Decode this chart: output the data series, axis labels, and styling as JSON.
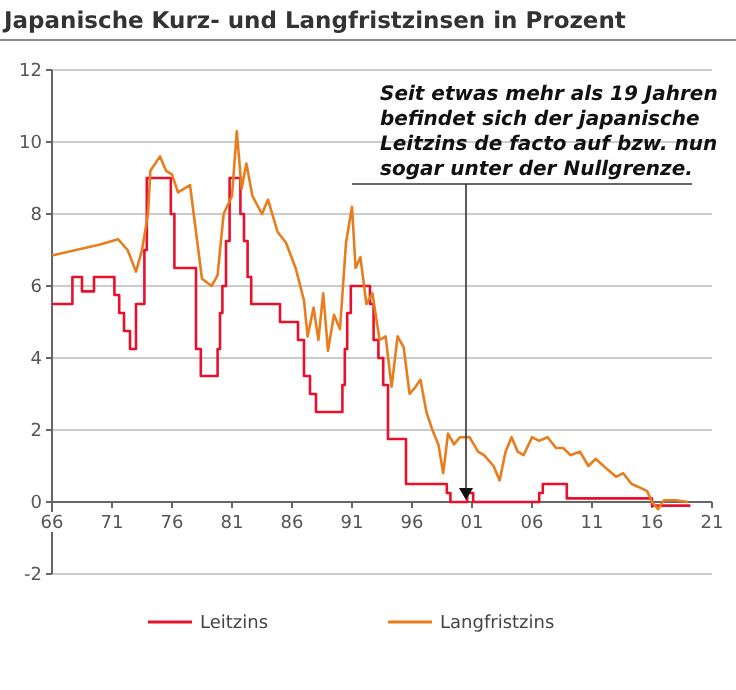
{
  "chart_data": {
    "type": "line",
    "title": "Japanische Kurz- und Langfristzinsen in Prozent",
    "xlim": [
      1966,
      2021
    ],
    "xticks": [
      {
        "value": 1966,
        "label": "66"
      },
      {
        "value": 1971,
        "label": "71"
      },
      {
        "value": 1976,
        "label": "76"
      },
      {
        "value": 1981,
        "label": "81"
      },
      {
        "value": 1986,
        "label": "86"
      },
      {
        "value": 1991,
        "label": "91"
      },
      {
        "value": 1996,
        "label": "96"
      },
      {
        "value": 2001,
        "label": "01"
      },
      {
        "value": 2006,
        "label": "06"
      },
      {
        "value": 2011,
        "label": "11"
      },
      {
        "value": 2016,
        "label": "16"
      },
      {
        "value": 2021,
        "label": "21"
      }
    ],
    "ylim": [
      -2,
      12
    ],
    "yticks": [
      -2,
      0,
      2,
      4,
      6,
      8,
      10,
      12
    ],
    "grid": "y",
    "legend": "bottom",
    "annotations": [
      {
        "text": "Seit etwas mehr als 19 Jahren befindet sich der japanische Leitzins de facto auf bzw. nun sogar unter der Nullgrenze.",
        "x": 2000.5,
        "y": 0
      }
    ],
    "series": [
      {
        "name": "Leitzins",
        "type": "step",
        "color": "#e8112d",
        "x": [
          1966,
          1967.7,
          1968.5,
          1969.5,
          1971.2,
          1971.6,
          1972,
          1972.5,
          1973,
          1973.7,
          1973.9,
          1974.2,
          1975.9,
          1976.2,
          1976.5,
          1978,
          1978.4,
          1979,
          1979.8,
          1980,
          1980.2,
          1980.5,
          1980.8,
          1981.2,
          1981.7,
          1982,
          1982.3,
          1982.6,
          1983,
          1985,
          1986.5,
          1987,
          1987.5,
          1988,
          1990.2,
          1990.4,
          1990.6,
          1990.9,
          1992.5,
          1992.8,
          1993.2,
          1993.6,
          1994,
          1995.5,
          1998.9,
          1999.2,
          2000.6,
          2001.1,
          2006.6,
          2006.9,
          2008.9,
          2016,
          2019.2
        ],
        "values": [
          5.5,
          6.25,
          5.85,
          6.25,
          5.75,
          5.25,
          4.75,
          4.25,
          5.5,
          7,
          9,
          9,
          8,
          6.5,
          6.5,
          4.25,
          3.5,
          3.5,
          4.25,
          5.25,
          6,
          7.25,
          9,
          9,
          8,
          7.25,
          6.25,
          5.5,
          5.5,
          5,
          4.5,
          3.5,
          3,
          2.5,
          3.25,
          4.25,
          5.25,
          6,
          5.5,
          4.5,
          4,
          3.25,
          1.75,
          0.5,
          0.25,
          0,
          0.25,
          0,
          0.25,
          0.5,
          0.1,
          -0.1,
          -0.1
        ]
      },
      {
        "name": "Langfristzins",
        "color": "#e87d1e",
        "x": [
          1966,
          1968,
          1970,
          1971.5,
          1972.3,
          1973,
          1973.5,
          1974,
          1974.2,
          1975,
          1975.5,
          1976,
          1976.5,
          1977.5,
          1978,
          1978.5,
          1979.3,
          1979.8,
          1980.3,
          1981,
          1981.4,
          1981.8,
          1982.2,
          1982.7,
          1983.5,
          1984,
          1984.8,
          1985.5,
          1986.3,
          1987,
          1987.3,
          1987.8,
          1988.2,
          1988.6,
          1989,
          1989.5,
          1990,
          1990.5,
          1991,
          1991.3,
          1991.7,
          1992.2,
          1992.7,
          1993.3,
          1993.8,
          1994.3,
          1994.8,
          1995.3,
          1995.8,
          1996.3,
          1996.7,
          1997.2,
          1997.7,
          1998.2,
          1998.6,
          1999,
          1999.5,
          2000,
          2000.8,
          2001.5,
          2002,
          2002.8,
          2003.3,
          2003.8,
          2004.3,
          2004.8,
          2005.3,
          2006,
          2006.6,
          2007.3,
          2008,
          2008.6,
          2009.2,
          2010,
          2010.7,
          2011.3,
          2012.3,
          2013,
          2013.6,
          2014.3,
          2015,
          2015.6,
          2016,
          2016.5,
          2017,
          2018,
          2019
        ],
        "values": [
          6.85,
          7,
          7.15,
          7.3,
          7,
          6.4,
          7,
          8,
          9.2,
          9.6,
          9.2,
          9.1,
          8.6,
          8.8,
          7.5,
          6.2,
          6,
          6.3,
          8,
          8.5,
          10.3,
          8.7,
          9.4,
          8.5,
          8,
          8.4,
          7.5,
          7.2,
          6.5,
          5.6,
          4.6,
          5.4,
          4.5,
          5.8,
          4.2,
          5.2,
          4.8,
          7.2,
          8.2,
          6.5,
          6.8,
          5.5,
          5.8,
          4.5,
          4.6,
          3.2,
          4.6,
          4.3,
          3,
          3.2,
          3.4,
          2.5,
          2,
          1.6,
          0.8,
          1.9,
          1.6,
          1.8,
          1.8,
          1.4,
          1.3,
          1,
          0.6,
          1.4,
          1.8,
          1.4,
          1.3,
          1.8,
          1.7,
          1.8,
          1.5,
          1.5,
          1.3,
          1.4,
          1,
          1.2,
          0.9,
          0.7,
          0.8,
          0.5,
          0.4,
          0.3,
          0,
          -0.2,
          0.05,
          0.05,
          0
        ]
      }
    ]
  }
}
